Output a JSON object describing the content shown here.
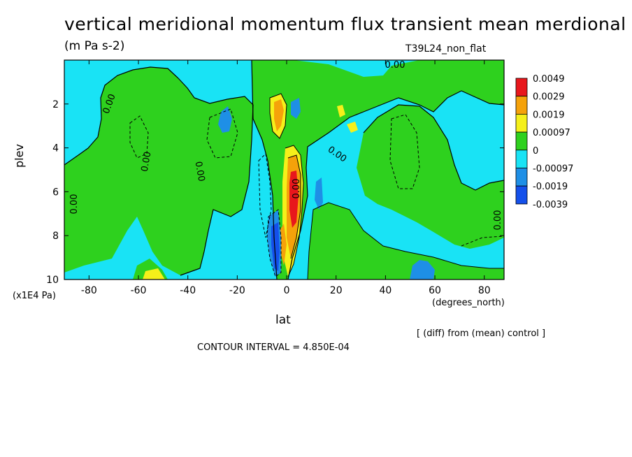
{
  "title": "vertical meridional momentum flux transient mean merdional",
  "units": "(m Pa s-2)",
  "run_name": "T39L24_non_flat",
  "diff_note": "[ (diff) from (mean) control ]",
  "contour_interval": "CONTOUR INTERVAL = 4.850E-04",
  "colors": {
    "level_pos4": "#e8171c",
    "level_pos3": "#f5a20a",
    "level_pos2": "#f5f01a",
    "level_pos1": "#2ed11e",
    "level_neg1": "#19e3f5",
    "level_neg2": "#1e8fe6",
    "level_neg3": "#1450eb"
  },
  "chart_data": {
    "type": "heatmap",
    "xlabel": "lat",
    "xunits": "(degrees_north)",
    "ylabel": "plev",
    "yunits": "(x1E4 Pa)",
    "xlim": [
      -90,
      88
    ],
    "ylim": [
      10,
      0
    ],
    "x_ticks": [
      "-80",
      "-60",
      "-40",
      "-20",
      "0",
      "20",
      "40",
      "60",
      "80"
    ],
    "y_ticks": [
      "2",
      "4",
      "6",
      "8",
      "10"
    ],
    "colorbar": {
      "labels": [
        "0.0049",
        "0.0029",
        "0.0019",
        "0.00097",
        "0",
        "-0.00097",
        "-0.0019",
        "-0.0039"
      ]
    },
    "contour_labels": [
      "0.00",
      "0.00",
      "0.00",
      "0.00",
      "0.00",
      "0.00",
      "0.00",
      "0.00"
    ],
    "contour_interval": 0.000485,
    "features": [
      {
        "lat": 3,
        "plev": 6.5,
        "sign": "positive",
        "peak": 0.0049
      },
      {
        "lat": -3,
        "plev": 8.0,
        "sign": "negative",
        "peak": -0.0039
      },
      {
        "lat": -2,
        "plev": 2.5,
        "sign": "positive",
        "peak": 0.0029
      },
      {
        "lat": 5,
        "plev": 2.5,
        "sign": "negative",
        "peak": -0.0019
      },
      {
        "lat": 57,
        "plev": 9.5,
        "sign": "negative",
        "peak": -0.0019
      },
      {
        "lat": -53,
        "plev": 9.8,
        "sign": "positive",
        "peak": 0.0019
      }
    ]
  }
}
